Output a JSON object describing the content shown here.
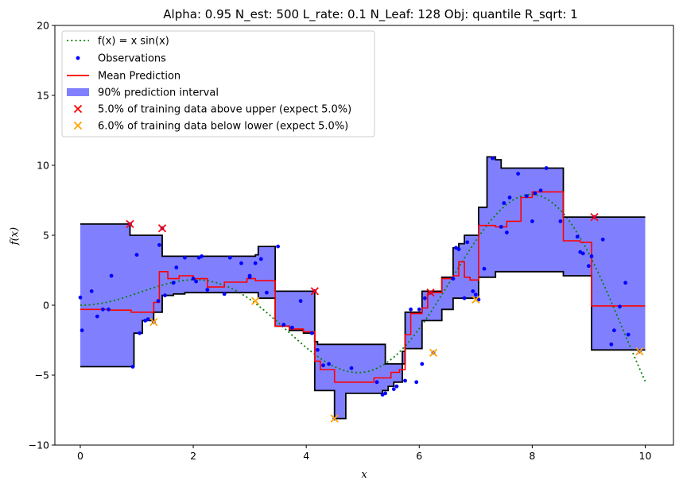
{
  "chart_data": {
    "type": "line",
    "title": "Alpha: 0.95  N_est: 500  L_rate: 0.1  N_Leaf: 128  Obj: quantile  R_sqrt: 1",
    "xlabel": "x",
    "ylabel": "f(x)",
    "xlim": [
      -0.45,
      10.5
    ],
    "ylim": [
      -10,
      20
    ],
    "xticks": [
      0,
      2,
      4,
      6,
      8,
      10
    ],
    "yticks": [
      -10,
      -5,
      0,
      5,
      10,
      15,
      20
    ],
    "xtick_labels": [
      "0",
      "2",
      "4",
      "6",
      "8",
      "10"
    ],
    "ytick_labels": [
      "−10",
      "−5",
      "0",
      "5",
      "10",
      "15",
      "20"
    ],
    "legend_position": "upper-left",
    "legend": [
      {
        "label": "f(x) = x sin(x)",
        "style": "dotted-line",
        "color": "#008000"
      },
      {
        "label": "Observations",
        "style": "dot",
        "color": "#0000ff"
      },
      {
        "label": "Mean Prediction",
        "style": "line",
        "color": "#ff0000"
      },
      {
        "label": "90% prediction interval",
        "style": "patch",
        "color": "#8080ff"
      },
      {
        "label": "5.0% of training data above upper (expect 5.0%)",
        "style": "x",
        "color": "#ff0000"
      },
      {
        "label": "6.0% of training data below lower (expect 5.0%)",
        "style": "x",
        "color": "#ffa500"
      }
    ],
    "true_function": "x*sin(x)",
    "upper_bound": [
      [
        0,
        5.8
      ],
      [
        0.88,
        5.8
      ],
      [
        0.88,
        5.0
      ],
      [
        1.45,
        5.0
      ],
      [
        1.45,
        3.5
      ],
      [
        3.1,
        3.5
      ],
      [
        3.1,
        3.6
      ],
      [
        3.15,
        3.6
      ],
      [
        3.15,
        4.2
      ],
      [
        3.45,
        4.2
      ],
      [
        3.45,
        1.0
      ],
      [
        4.15,
        1.0
      ],
      [
        4.15,
        -2.6
      ],
      [
        4.2,
        -2.6
      ],
      [
        4.2,
        -2.8
      ],
      [
        5.4,
        -2.8
      ],
      [
        5.4,
        -4.2
      ],
      [
        5.75,
        -4.2
      ],
      [
        5.75,
        -0.5
      ],
      [
        6.05,
        -0.5
      ],
      [
        6.05,
        1.0
      ],
      [
        6.4,
        1.0
      ],
      [
        6.4,
        2.0
      ],
      [
        6.6,
        2.0
      ],
      [
        6.6,
        4.1
      ],
      [
        6.7,
        4.1
      ],
      [
        6.7,
        4.4
      ],
      [
        6.8,
        4.4
      ],
      [
        6.8,
        5.0
      ],
      [
        7.05,
        5.0
      ],
      [
        7.05,
        7.0
      ],
      [
        7.2,
        7.0
      ],
      [
        7.2,
        10.6
      ],
      [
        7.35,
        10.6
      ],
      [
        7.35,
        10.4
      ],
      [
        7.45,
        10.4
      ],
      [
        7.45,
        9.8
      ],
      [
        8.55,
        9.8
      ],
      [
        8.55,
        6.3
      ],
      [
        10,
        6.3
      ]
    ],
    "lower_bound": [
      [
        0,
        -4.4
      ],
      [
        0.95,
        -4.4
      ],
      [
        0.95,
        -2.0
      ],
      [
        1.1,
        -2.0
      ],
      [
        1.1,
        -1.1
      ],
      [
        1.3,
        -1.1
      ],
      [
        1.3,
        -0.5
      ],
      [
        1.45,
        -0.5
      ],
      [
        1.45,
        0.7
      ],
      [
        1.65,
        0.7
      ],
      [
        1.65,
        0.8
      ],
      [
        1.85,
        0.8
      ],
      [
        1.85,
        0.9
      ],
      [
        3.15,
        0.9
      ],
      [
        3.15,
        0.5
      ],
      [
        3.45,
        0.5
      ],
      [
        3.45,
        -1.5
      ],
      [
        3.7,
        -1.5
      ],
      [
        3.7,
        -1.8
      ],
      [
        3.95,
        -1.8
      ],
      [
        3.95,
        -2.0
      ],
      [
        4.15,
        -2.0
      ],
      [
        4.15,
        -6.1
      ],
      [
        4.5,
        -6.1
      ],
      [
        4.5,
        -8.1
      ],
      [
        4.7,
        -8.1
      ],
      [
        4.7,
        -6.3
      ],
      [
        5.35,
        -6.3
      ],
      [
        5.35,
        -6.1
      ],
      [
        5.45,
        -6.1
      ],
      [
        5.45,
        -5.8
      ],
      [
        5.55,
        -5.8
      ],
      [
        5.55,
        -5.5
      ],
      [
        5.7,
        -5.5
      ],
      [
        5.7,
        -3.3
      ],
      [
        5.75,
        -3.3
      ],
      [
        5.75,
        -3.1
      ],
      [
        6.05,
        -3.1
      ],
      [
        6.05,
        -1.1
      ],
      [
        6.4,
        -1.1
      ],
      [
        6.4,
        -0.3
      ],
      [
        6.6,
        -0.3
      ],
      [
        6.6,
        0.5
      ],
      [
        7.05,
        0.5
      ],
      [
        7.05,
        2.0
      ],
      [
        7.35,
        2.0
      ],
      [
        7.35,
        2.4
      ],
      [
        8.55,
        2.4
      ],
      [
        8.55,
        2.1
      ],
      [
        9.05,
        2.1
      ],
      [
        9.05,
        -3.2
      ],
      [
        10,
        -3.2
      ]
    ],
    "mean_prediction": [
      [
        0,
        -0.3
      ],
      [
        0.5,
        -0.3
      ],
      [
        0.5,
        -0.35
      ],
      [
        0.9,
        -0.35
      ],
      [
        0.9,
        -0.5
      ],
      [
        1.3,
        -0.5
      ],
      [
        1.3,
        0.2
      ],
      [
        1.4,
        0.2
      ],
      [
        1.4,
        2.4
      ],
      [
        1.55,
        2.4
      ],
      [
        1.55,
        1.9
      ],
      [
        1.75,
        1.9
      ],
      [
        1.75,
        2.1
      ],
      [
        2.0,
        2.1
      ],
      [
        2.0,
        1.9
      ],
      [
        2.25,
        1.9
      ],
      [
        2.25,
        1.3
      ],
      [
        2.55,
        1.3
      ],
      [
        2.55,
        1.65
      ],
      [
        2.95,
        1.65
      ],
      [
        2.95,
        1.9
      ],
      [
        3.1,
        1.9
      ],
      [
        3.1,
        1.75
      ],
      [
        3.45,
        1.75
      ],
      [
        3.45,
        -1.5
      ],
      [
        3.7,
        -1.5
      ],
      [
        3.7,
        -1.7
      ],
      [
        3.95,
        -1.7
      ],
      [
        3.95,
        -1.9
      ],
      [
        4.15,
        -1.9
      ],
      [
        4.15,
        -4.0
      ],
      [
        4.25,
        -4.0
      ],
      [
        4.25,
        -4.6
      ],
      [
        4.5,
        -4.6
      ],
      [
        4.5,
        -5.5
      ],
      [
        5.2,
        -5.5
      ],
      [
        5.2,
        -5.2
      ],
      [
        5.5,
        -5.2
      ],
      [
        5.5,
        -4.8
      ],
      [
        5.65,
        -4.8
      ],
      [
        5.65,
        -4.6
      ],
      [
        5.75,
        -4.6
      ],
      [
        5.75,
        -2.1
      ],
      [
        5.85,
        -2.1
      ],
      [
        5.85,
        -0.6
      ],
      [
        6.05,
        -0.6
      ],
      [
        6.05,
        -0.2
      ],
      [
        6.15,
        -0.2
      ],
      [
        6.15,
        0.9
      ],
      [
        6.4,
        0.9
      ],
      [
        6.4,
        1.9
      ],
      [
        6.6,
        1.9
      ],
      [
        6.6,
        2.1
      ],
      [
        6.7,
        2.1
      ],
      [
        6.7,
        3.1
      ],
      [
        6.8,
        3.1
      ],
      [
        6.8,
        2.0
      ],
      [
        6.9,
        2.0
      ],
      [
        6.9,
        1.8
      ],
      [
        7.05,
        1.8
      ],
      [
        7.05,
        5.7
      ],
      [
        7.35,
        5.7
      ],
      [
        7.35,
        5.6
      ],
      [
        7.55,
        5.6
      ],
      [
        7.55,
        6.0
      ],
      [
        7.8,
        6.0
      ],
      [
        7.8,
        7.7
      ],
      [
        8.0,
        7.7
      ],
      [
        8.0,
        8.1
      ],
      [
        8.55,
        8.1
      ],
      [
        8.55,
        4.6
      ],
      [
        8.85,
        4.6
      ],
      [
        8.85,
        4.5
      ],
      [
        9.05,
        4.5
      ],
      [
        9.05,
        -0.05
      ],
      [
        10,
        -0.05
      ]
    ],
    "observations": [
      [
        0.0,
        0.55
      ],
      [
        0.03,
        -1.8
      ],
      [
        0.2,
        1.0
      ],
      [
        0.3,
        -0.8
      ],
      [
        0.4,
        -0.3
      ],
      [
        0.5,
        -0.3
      ],
      [
        0.55,
        2.1
      ],
      [
        0.88,
        5.8
      ],
      [
        0.93,
        -4.4
      ],
      [
        1.0,
        3.6
      ],
      [
        1.05,
        -2.0
      ],
      [
        1.15,
        -1.1
      ],
      [
        1.2,
        -1.0
      ],
      [
        1.3,
        -1.2
      ],
      [
        1.38,
        0.3
      ],
      [
        1.4,
        4.3
      ],
      [
        1.45,
        5.5
      ],
      [
        1.5,
        0.7
      ],
      [
        1.65,
        1.6
      ],
      [
        1.7,
        2.7
      ],
      [
        1.85,
        3.4
      ],
      [
        2.0,
        1.9
      ],
      [
        2.05,
        1.7
      ],
      [
        2.1,
        3.4
      ],
      [
        2.15,
        3.5
      ],
      [
        2.25,
        1.1
      ],
      [
        2.55,
        0.8
      ],
      [
        2.65,
        3.4
      ],
      [
        2.85,
        3.0
      ],
      [
        3.0,
        2.1
      ],
      [
        3.0,
        2.0
      ],
      [
        3.1,
        3.0
      ],
      [
        3.2,
        3.3
      ],
      [
        3.3,
        0.9
      ],
      [
        3.5,
        4.2
      ],
      [
        3.6,
        -1.4
      ],
      [
        3.75,
        -1.6
      ],
      [
        3.9,
        0.3
      ],
      [
        4.1,
        -2.0
      ],
      [
        4.15,
        1.0
      ],
      [
        4.2,
        -3.2
      ],
      [
        4.3,
        -4.3
      ],
      [
        4.4,
        -4.2
      ],
      [
        4.5,
        -8.1
      ],
      [
        4.8,
        -4.5
      ],
      [
        5.25,
        -5.5
      ],
      [
        5.35,
        -6.4
      ],
      [
        5.4,
        -6.3
      ],
      [
        5.55,
        -6.0
      ],
      [
        5.6,
        -5.8
      ],
      [
        5.75,
        -5.4
      ],
      [
        5.85,
        -0.3
      ],
      [
        5.95,
        -5.5
      ],
      [
        6.0,
        -0.3
      ],
      [
        6.05,
        -4.2
      ],
      [
        6.1,
        0.5
      ],
      [
        6.2,
        0.9
      ],
      [
        6.25,
        -3.4
      ],
      [
        6.6,
        1.9
      ],
      [
        6.65,
        4.1
      ],
      [
        6.7,
        4.0
      ],
      [
        6.8,
        0.5
      ],
      [
        6.85,
        4.5
      ],
      [
        6.95,
        1.0
      ],
      [
        7.0,
        0.75
      ],
      [
        7.05,
        0.4
      ],
      [
        7.15,
        2.6
      ],
      [
        7.3,
        10.5
      ],
      [
        7.45,
        5.6
      ],
      [
        7.5,
        7.3
      ],
      [
        7.55,
        5.2
      ],
      [
        7.6,
        7.7
      ],
      [
        7.75,
        9.4
      ],
      [
        7.9,
        7.8
      ],
      [
        8.0,
        6.0
      ],
      [
        8.05,
        8.0
      ],
      [
        8.15,
        8.2
      ],
      [
        8.25,
        9.8
      ],
      [
        8.5,
        6.0
      ],
      [
        8.8,
        4.9
      ],
      [
        8.85,
        3.8
      ],
      [
        8.9,
        3.7
      ],
      [
        9.0,
        2.8
      ],
      [
        9.05,
        3.5
      ],
      [
        9.1,
        6.3
      ],
      [
        9.25,
        4.7
      ],
      [
        9.4,
        -2.8
      ],
      [
        9.45,
        -1.8
      ],
      [
        9.55,
        -0.1
      ],
      [
        9.65,
        1.6
      ],
      [
        9.7,
        -2.1
      ],
      [
        9.9,
        -3.3
      ]
    ],
    "above_upper_points": [
      [
        0.88,
        5.8
      ],
      [
        1.45,
        5.5
      ],
      [
        4.15,
        1.0
      ],
      [
        6.2,
        0.9
      ],
      [
        9.1,
        6.3
      ]
    ],
    "below_lower_points": [
      [
        1.3,
        -1.2
      ],
      [
        3.1,
        0.3
      ],
      [
        4.5,
        -8.1
      ],
      [
        6.25,
        -3.4
      ],
      [
        7.0,
        0.4
      ],
      [
        9.9,
        -3.3
      ]
    ]
  }
}
